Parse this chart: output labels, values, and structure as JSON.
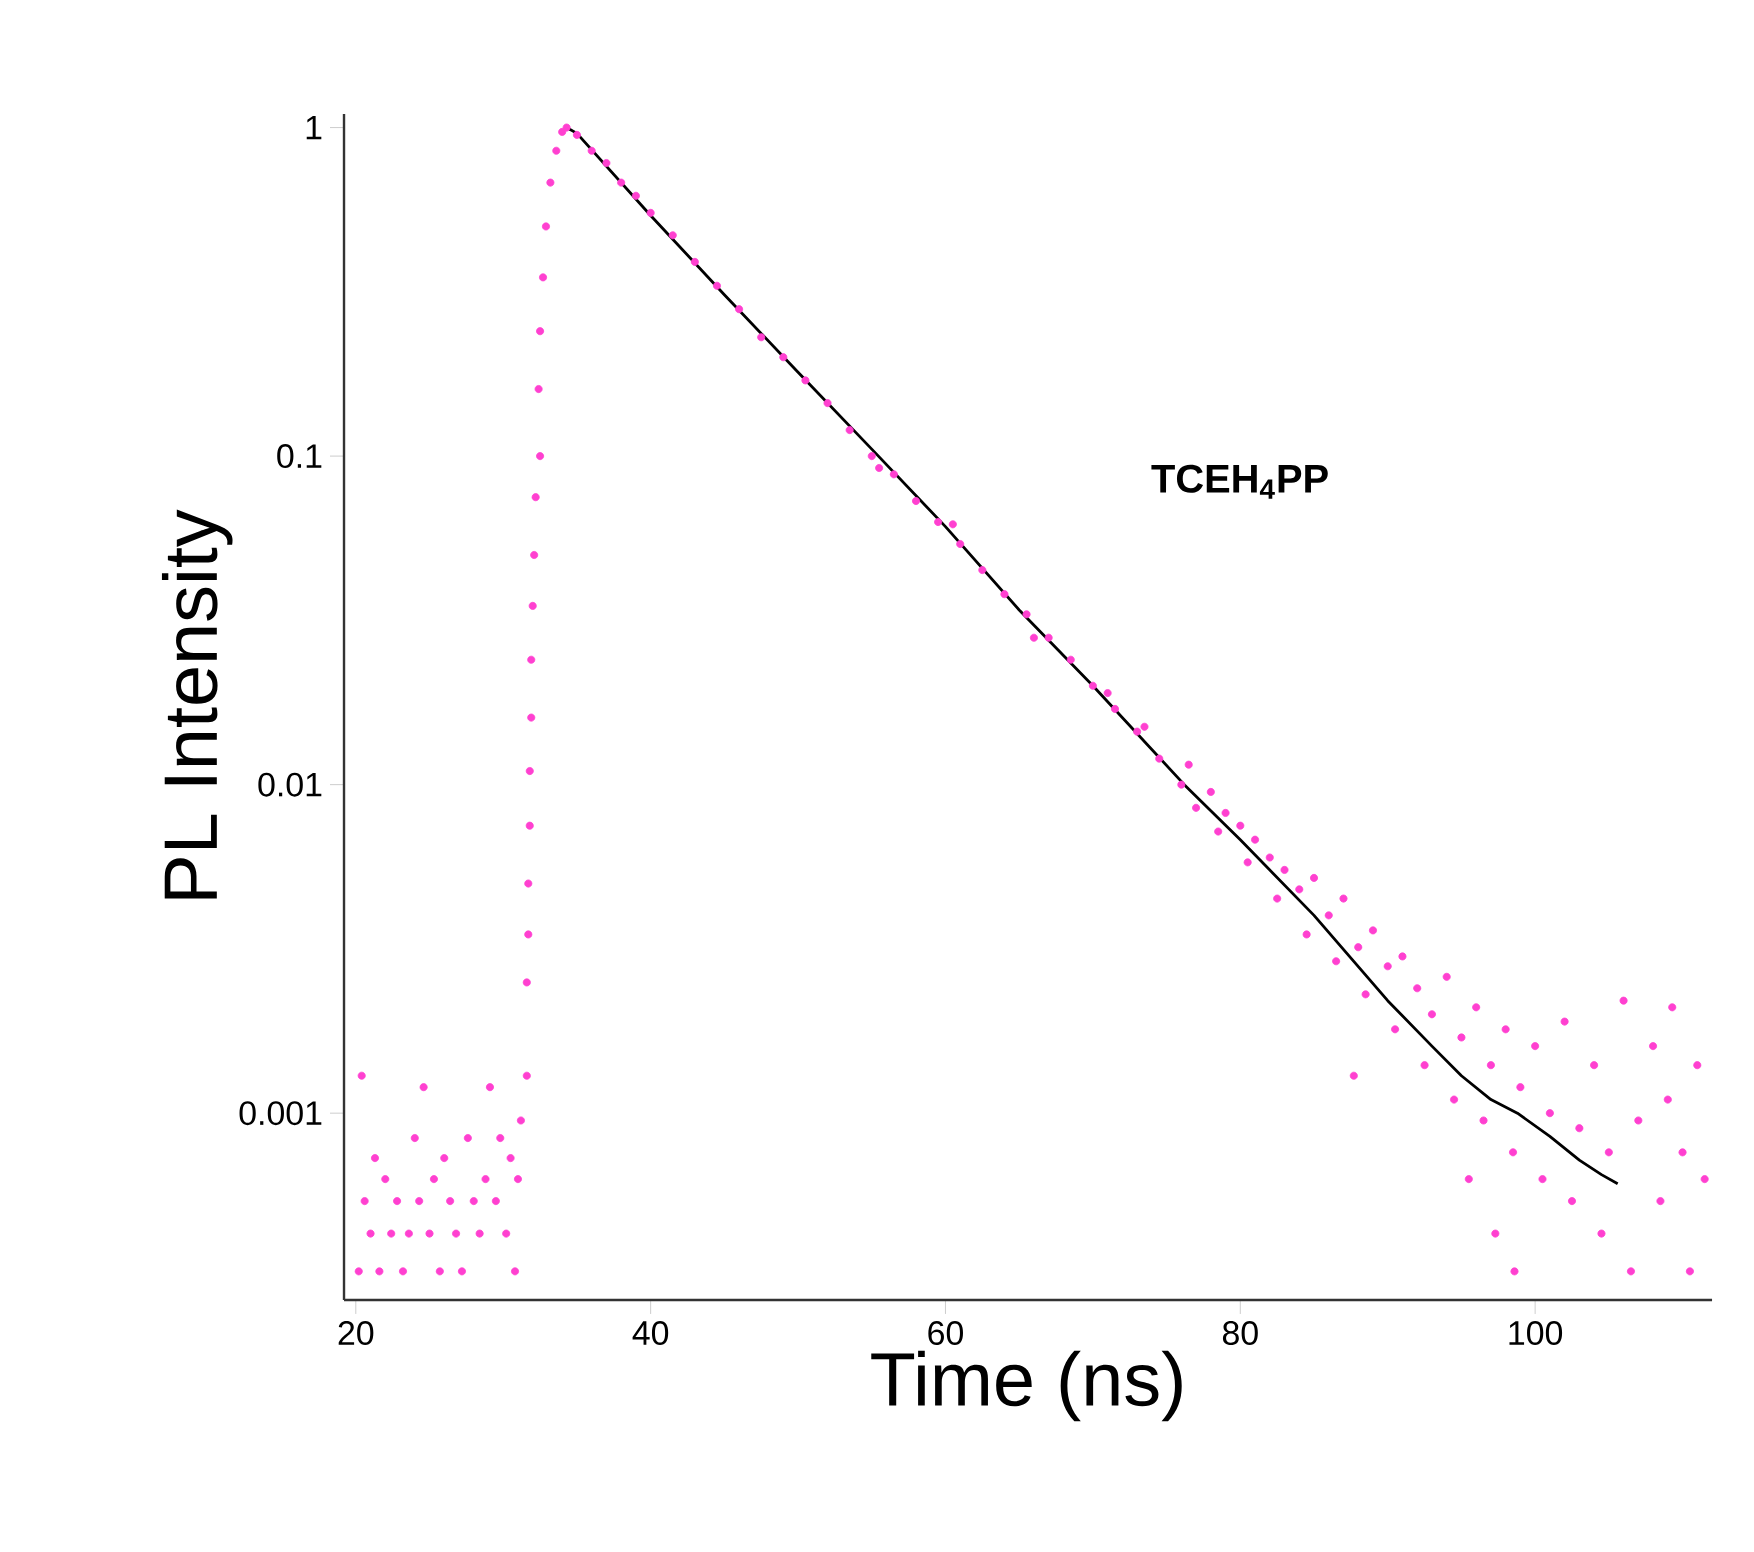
{
  "chart_data": {
    "type": "scatter",
    "xlabel": "Time (ns)",
    "ylabel": "PL Intensity",
    "annotations": [
      "**TCEH$_{4}$PP**"
    ],
    "log": "y",
    "xlim": [
      19.2,
      112
    ],
    "ylim": [
      0.00027,
      1.1
    ],
    "xticks": [
      20,
      40,
      60,
      80,
      100
    ],
    "yticks": [
      0.001,
      0.01,
      0.1,
      1
    ],
    "series": [
      {
        "marker": "circle",
        "color": "#ff40d0",
        "x": [
          20.2,
          20.4,
          20.6,
          21,
          21.3,
          21.6,
          22,
          22.4,
          22.8,
          23.2,
          23.6,
          24,
          24.3,
          24.6,
          25,
          25.3,
          25.7,
          26,
          26.4,
          26.8,
          27.2,
          27.6,
          28,
          28.4,
          28.8,
          29.1,
          29.5,
          29.8,
          30.2,
          30.5,
          30.8,
          31,
          31.2,
          31.6,
          31.6,
          31.7,
          31.7,
          31.8,
          31.8,
          31.9,
          31.9,
          32.0,
          32.1,
          32.2,
          32.5,
          32.4,
          32.5,
          32.7,
          32.9,
          33.2,
          33.6,
          34.0,
          34.3,
          35,
          36,
          37,
          38,
          39,
          40,
          41.5,
          43,
          44.5,
          46,
          47.5,
          49,
          50.5,
          52,
          53.5,
          55,
          55.5,
          56.5,
          58,
          59.5,
          60.5,
          61,
          62.5,
          64,
          65.5,
          66,
          67,
          68.5,
          70,
          71,
          71.5,
          73,
          73.5,
          74.5,
          76,
          76.5,
          77,
          78,
          78.5,
          79,
          80,
          80.5,
          81,
          82,
          82.5,
          83,
          84,
          84.5,
          85,
          86,
          86.5,
          87,
          87.7,
          88,
          88.5,
          89,
          90,
          90.5,
          91,
          92,
          92.5,
          93,
          94,
          94.5,
          95,
          95.5,
          96,
          96.5,
          97,
          97.3,
          98,
          98.5,
          98.6,
          99,
          100,
          100.5,
          101,
          102,
          102.5,
          103,
          104,
          104.5,
          105,
          106,
          106.5,
          107,
          108,
          108.5,
          109,
          109.3,
          110,
          110.5,
          111,
          111.5
        ],
        "values": [
          0.00033,
          0.0013,
          0.00054,
          0.00043,
          0.00073,
          0.00033,
          0.00063,
          0.00043,
          0.00054,
          0.00033,
          0.00043,
          0.00084,
          0.00054,
          0.0012,
          0.00043,
          0.00063,
          0.00033,
          0.00073,
          0.00054,
          0.00043,
          0.00033,
          0.00084,
          0.00054,
          0.00043,
          0.00063,
          0.0012,
          0.00054,
          0.00084,
          0.00043,
          0.00073,
          0.00033,
          0.00063,
          0.00095,
          0.0013,
          0.0025,
          0.0035,
          0.005,
          0.0075,
          0.011,
          0.016,
          0.024,
          0.035,
          0.05,
          0.075,
          0.1,
          0.16,
          0.24,
          0.35,
          0.5,
          0.68,
          0.85,
          0.97,
          1.0,
          0.95,
          0.85,
          0.78,
          0.68,
          0.62,
          0.55,
          0.47,
          0.39,
          0.33,
          0.28,
          0.23,
          0.2,
          0.17,
          0.145,
          0.12,
          0.1,
          0.092,
          0.088,
          0.073,
          0.063,
          0.062,
          0.054,
          0.045,
          0.038,
          0.033,
          0.028,
          0.028,
          0.024,
          0.02,
          0.019,
          0.017,
          0.0145,
          0.015,
          0.012,
          0.01,
          0.0115,
          0.0085,
          0.0095,
          0.0072,
          0.0082,
          0.0075,
          0.0058,
          0.0068,
          0.006,
          0.0045,
          0.0055,
          0.0048,
          0.0035,
          0.0052,
          0.004,
          0.0029,
          0.0045,
          0.0013,
          0.0032,
          0.0023,
          0.0036,
          0.0028,
          0.0018,
          0.003,
          0.0024,
          0.0014,
          0.002,
          0.0026,
          0.0011,
          0.0017,
          0.00063,
          0.0021,
          0.00095,
          0.0014,
          0.00043,
          0.0018,
          0.00076,
          0.00033,
          0.0012,
          0.0016,
          0.00063,
          0.001,
          0.0019,
          0.00054,
          0.0009,
          0.0014,
          0.00043,
          0.00076,
          0.0022,
          0.00033,
          0.00095,
          0.0016,
          0.00054,
          0.0011,
          0.0021,
          0.00076,
          0.00033,
          0.0014,
          0.00063
        ]
      },
      {
        "type": "line",
        "marker": "none",
        "color": "#000000",
        "x": [
          34.3,
          35,
          40,
          45,
          50,
          55,
          60,
          65,
          70,
          76.2,
          80,
          85,
          90,
          93,
          95,
          97,
          98.8,
          101,
          103,
          104.5,
          105.6
        ],
        "values": [
          1.0,
          0.96,
          0.54,
          0.31,
          0.18,
          0.105,
          0.061,
          0.034,
          0.02,
          0.01,
          0.0068,
          0.004,
          0.0022,
          0.0016,
          0.0013,
          0.0011,
          0.001,
          0.00085,
          0.00072,
          0.00065,
          0.00061
        ]
      }
    ]
  }
}
